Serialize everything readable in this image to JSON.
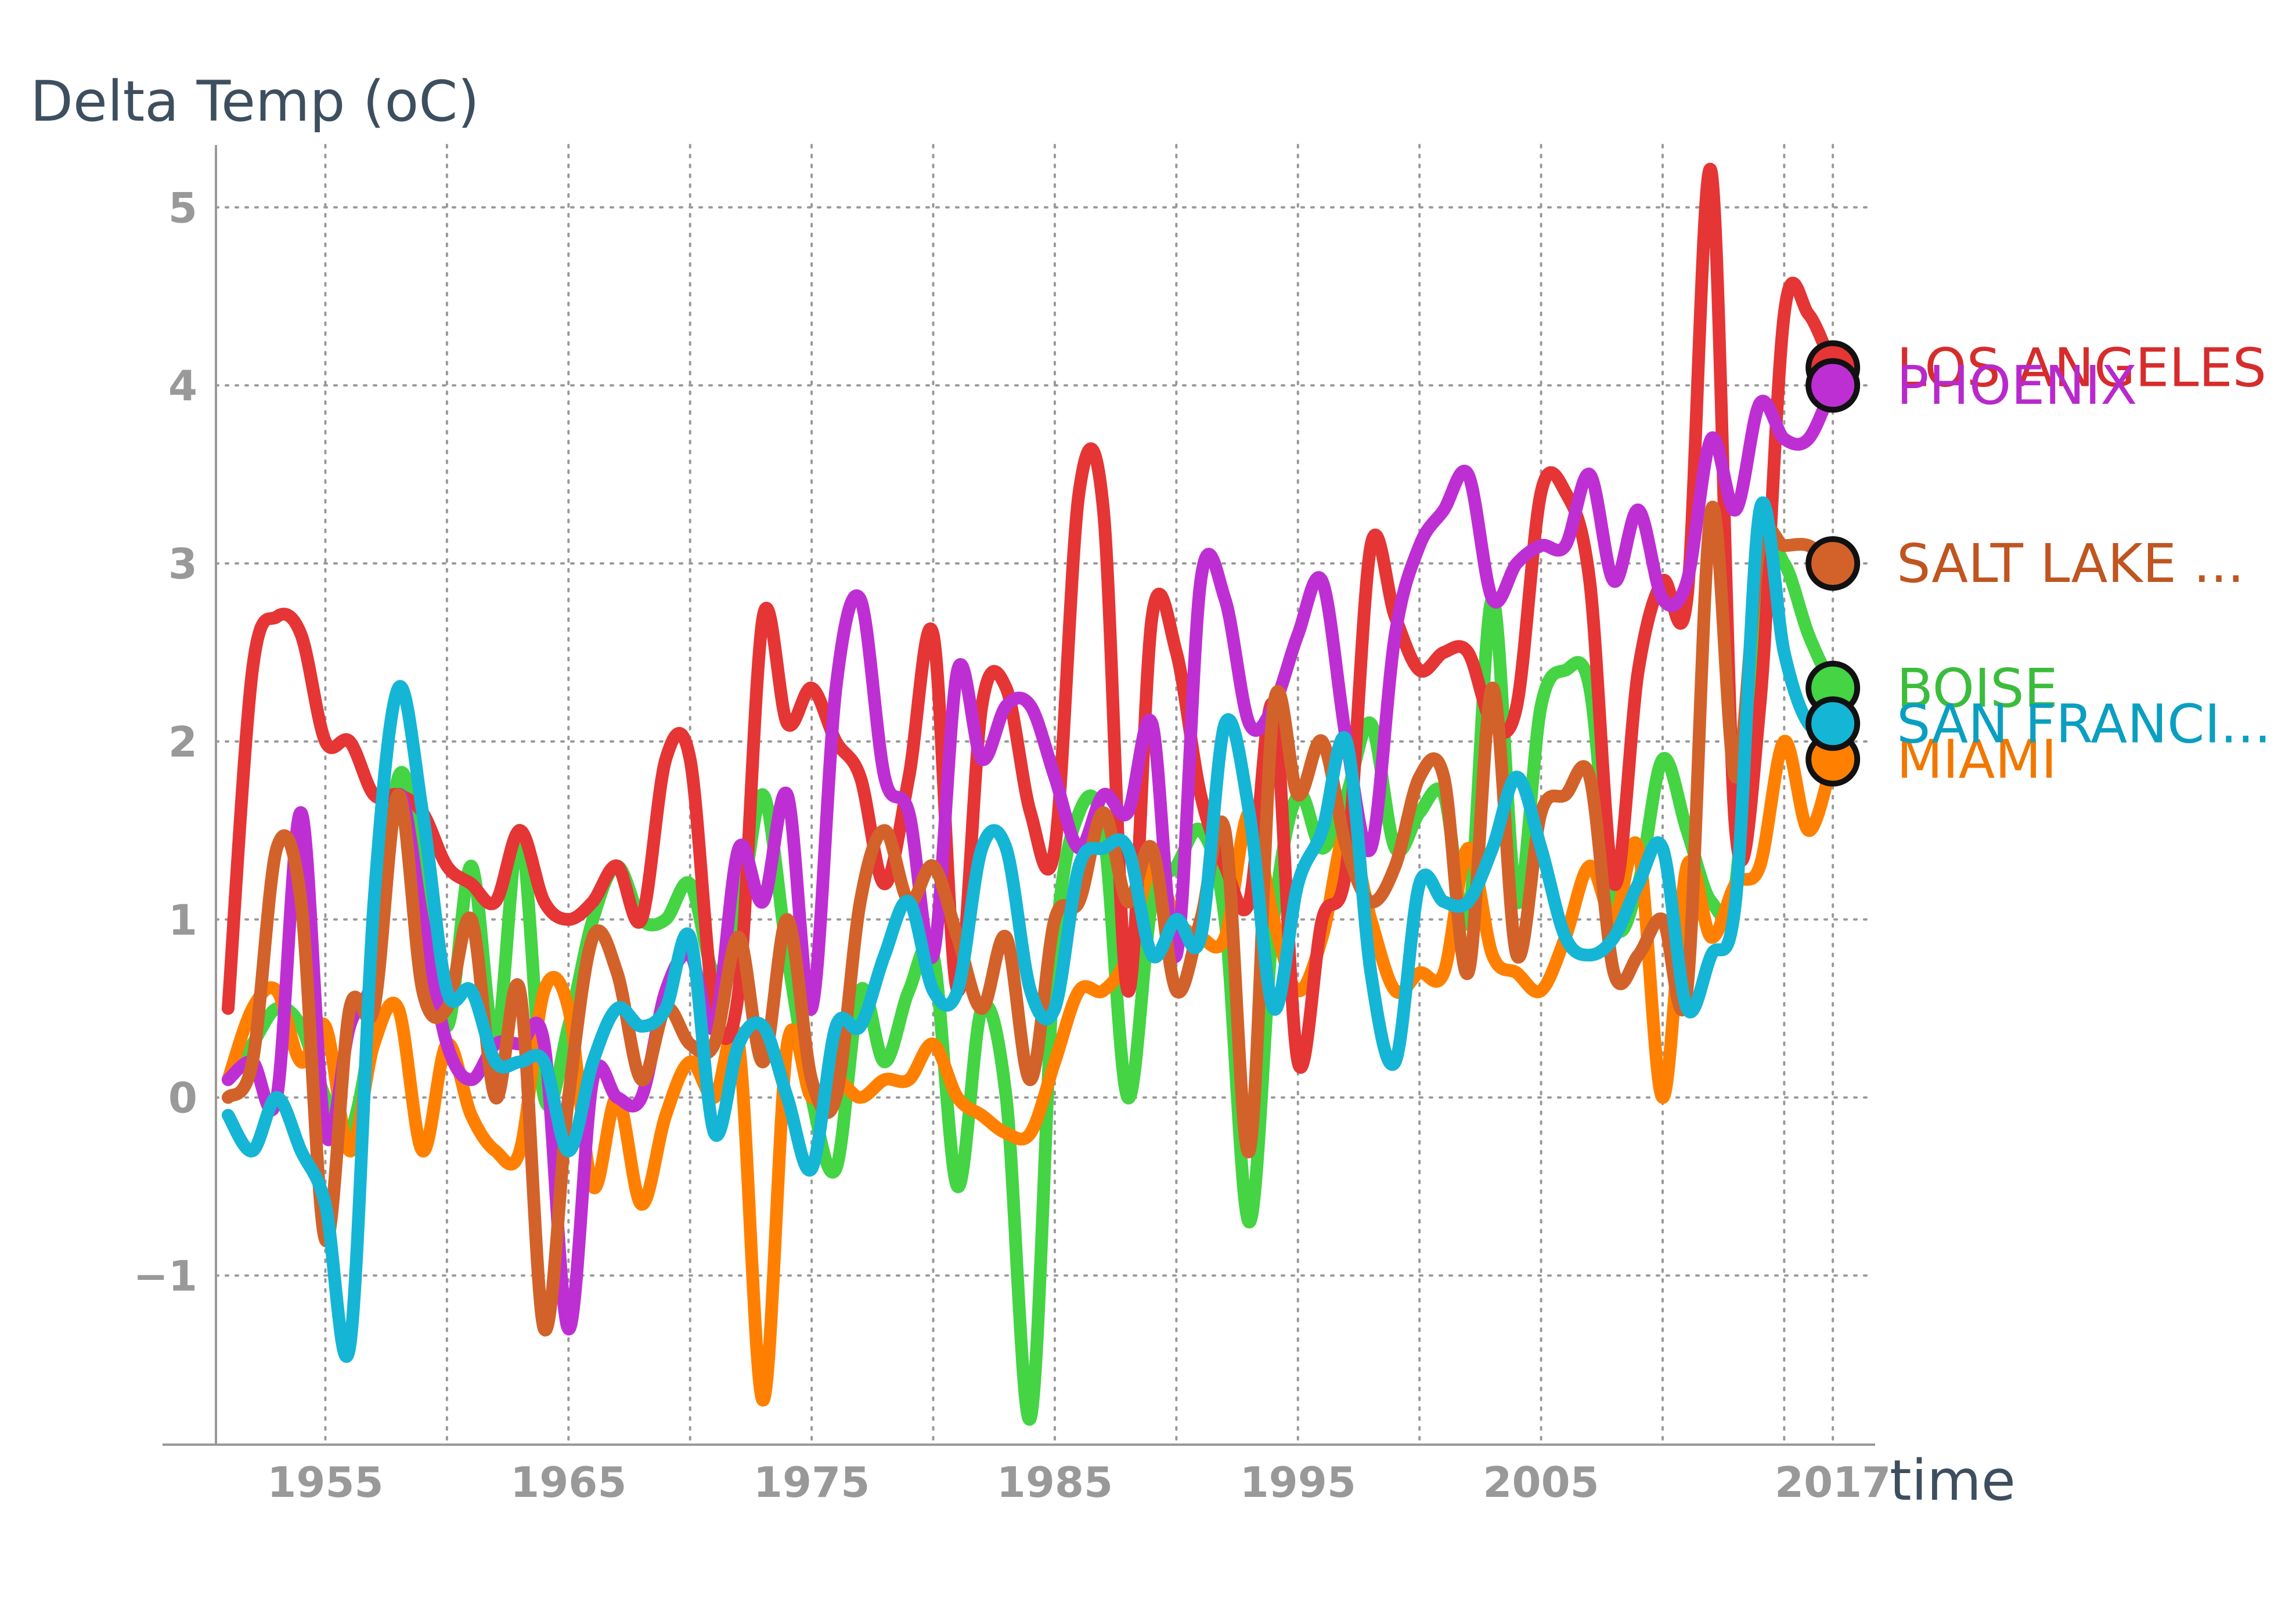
{
  "chart_data": {
    "type": "line",
    "ylabel": "Delta Temp (oC)",
    "xlabel": "time",
    "xlim": [
      1950.5,
      2018.5
    ],
    "ylim": [
      -1.95,
      5.35
    ],
    "grid": true,
    "x_ticks": [
      1955,
      1965,
      1975,
      1985,
      1995,
      2005,
      2017
    ],
    "x_tick_labels": [
      "1955",
      "1965",
      "1975",
      "1985",
      "1995",
      "2005",
      "2017"
    ],
    "y_ticks": [
      -1,
      0,
      1,
      2,
      3,
      4,
      5
    ],
    "y_tick_labels": [
      "−1",
      "0",
      "1",
      "2",
      "3",
      "4",
      "5"
    ],
    "colors": {
      "axis": "#999999",
      "grid": "#999999",
      "marker_outline": "#111111"
    },
    "series": [
      {
        "name": "BOISE",
        "label": "BOISE",
        "color": "#44d444",
        "label_color": "#3cbc3c",
        "x": [
          1951,
          1952,
          1953,
          1954,
          1955,
          1956,
          1957,
          1958,
          1959,
          1960,
          1961,
          1962,
          1963,
          1964,
          1965,
          1966,
          1967,
          1968,
          1969,
          1970,
          1971,
          1972,
          1973,
          1974,
          1975,
          1976,
          1977,
          1978,
          1979,
          1980,
          1981,
          1982,
          1983,
          1984,
          1985,
          1986,
          1987,
          1988,
          1989,
          1990,
          1991,
          1992,
          1993,
          1994,
          1995,
          1996,
          1997,
          1998,
          1999,
          2000,
          2001,
          2002,
          2003,
          2004,
          2005,
          2006,
          2007,
          2008,
          2009,
          2010,
          2011,
          2012,
          2013,
          2014,
          2015,
          2016,
          2017
        ],
        "values": [
          0.1,
          0.3,
          0.5,
          0.4,
          0.0,
          -0.2,
          0.5,
          1.8,
          1.3,
          0.4,
          1.3,
          0.3,
          1.5,
          0.0,
          0.4,
          1.0,
          1.3,
          1.0,
          1.0,
          1.2,
          0.7,
          1.0,
          1.7,
          0.8,
          0.0,
          -0.4,
          0.6,
          0.2,
          0.6,
          0.8,
          -0.5,
          0.5,
          0.0,
          -1.8,
          0.8,
          1.6,
          1.5,
          0.0,
          1.1,
          1.3,
          1.5,
          1.0,
          -0.7,
          1.0,
          1.7,
          1.4,
          1.7,
          2.1,
          1.4,
          1.6,
          1.7,
          1.0,
          2.8,
          1.1,
          2.2,
          2.4,
          2.3,
          1.0,
          1.2,
          1.9,
          1.5,
          1.1,
          1.2,
          3.0,
          3.0,
          2.6,
          2.3
        ]
      },
      {
        "name": "MIAMI",
        "label": "MIAMI",
        "color": "#ff8000",
        "label_color": "#f07800",
        "x": [
          1951,
          1952,
          1953,
          1954,
          1955,
          1956,
          1957,
          1958,
          1959,
          1960,
          1961,
          1962,
          1963,
          1964,
          1965,
          1966,
          1967,
          1968,
          1969,
          1970,
          1971,
          1972,
          1973,
          1974,
          1975,
          1976,
          1977,
          1978,
          1979,
          1980,
          1981,
          1982,
          1983,
          1984,
          1985,
          1986,
          1987,
          1988,
          1989,
          1990,
          1991,
          1992,
          1993,
          1994,
          1995,
          1996,
          1997,
          1998,
          1999,
          2000,
          2001,
          2002,
          2003,
          2004,
          2005,
          2006,
          2007,
          2008,
          2009,
          2010,
          2011,
          2012,
          2013,
          2014,
          2015,
          2016,
          2017
        ],
        "values": [
          0.1,
          0.5,
          0.6,
          0.2,
          0.4,
          -0.3,
          0.3,
          0.5,
          -0.3,
          0.3,
          -0.1,
          -0.3,
          -0.3,
          0.6,
          0.5,
          -0.5,
          0.0,
          -0.6,
          -0.1,
          0.2,
          0.0,
          0.3,
          -1.7,
          0.3,
          0.0,
          0.1,
          0.0,
          0.1,
          0.1,
          0.3,
          0.0,
          -0.1,
          -0.2,
          -0.2,
          0.2,
          0.6,
          0.6,
          0.8,
          1.3,
          1.0,
          0.9,
          0.9,
          1.6,
          1.0,
          0.6,
          0.9,
          1.5,
          1.0,
          0.6,
          0.7,
          0.7,
          1.4,
          0.8,
          0.7,
          0.6,
          0.9,
          1.3,
          1.0,
          1.4,
          0.0,
          1.3,
          0.9,
          1.2,
          1.3,
          2.0,
          1.5,
          1.9
        ]
      },
      {
        "name": "LOS ANGELES",
        "label": "LOS ANGELES",
        "color": "#e53535",
        "label_color": "#d62c2c",
        "x": [
          1951,
          1952,
          1953,
          1954,
          1955,
          1956,
          1957,
          1958,
          1959,
          1960,
          1961,
          1962,
          1963,
          1964,
          1965,
          1966,
          1967,
          1968,
          1969,
          1970,
          1971,
          1972,
          1973,
          1974,
          1975,
          1976,
          1977,
          1978,
          1979,
          1980,
          1981,
          1982,
          1983,
          1984,
          1985,
          1986,
          1987,
          1988,
          1989,
          1990,
          1991,
          1992,
          1993,
          1994,
          1995,
          1996,
          1997,
          1998,
          1999,
          2000,
          2001,
          2002,
          2003,
          2004,
          2005,
          2006,
          2007,
          2008,
          2009,
          2010,
          2011,
          2012,
          2013,
          2014,
          2015,
          2016,
          2017
        ],
        "values": [
          0.5,
          2.4,
          2.7,
          2.6,
          2.0,
          2.0,
          1.7,
          1.7,
          1.6,
          1.3,
          1.2,
          1.1,
          1.5,
          1.1,
          1.0,
          1.1,
          1.3,
          1.0,
          1.9,
          1.9,
          0.5,
          0.6,
          2.7,
          2.1,
          2.3,
          2.0,
          1.8,
          1.2,
          1.8,
          2.6,
          0.6,
          2.2,
          2.3,
          1.6,
          1.4,
          3.4,
          3.3,
          0.6,
          2.7,
          2.5,
          1.7,
          1.3,
          1.1,
          2.2,
          0.2,
          1.0,
          1.3,
          3.1,
          2.7,
          2.4,
          2.5,
          2.5,
          2.1,
          2.2,
          3.4,
          3.4,
          2.9,
          1.2,
          2.4,
          2.9,
          2.8,
          5.2,
          1.5,
          2.2,
          4.4,
          4.4,
          4.1
        ]
      },
      {
        "name": "PHOENIX",
        "label": "PHOENIX",
        "color": "#be2fd3",
        "label_color": "#b829cc",
        "x": [
          1951,
          1952,
          1953,
          1954,
          1955,
          1956,
          1957,
          1958,
          1959,
          1960,
          1961,
          1962,
          1963,
          1964,
          1965,
          1966,
          1967,
          1968,
          1969,
          1970,
          1971,
          1972,
          1973,
          1974,
          1975,
          1976,
          1977,
          1978,
          1979,
          1980,
          1981,
          1982,
          1983,
          1984,
          1985,
          1986,
          1987,
          1988,
          1989,
          1990,
          1991,
          1992,
          1993,
          1994,
          1995,
          1996,
          1997,
          1998,
          1999,
          2000,
          2001,
          2002,
          2003,
          2004,
          2005,
          2006,
          2007,
          2008,
          2009,
          2010,
          2011,
          2012,
          2013,
          2014,
          2015,
          2016,
          2017
        ],
        "values": [
          0.1,
          0.2,
          0.0,
          1.6,
          -0.2,
          0.4,
          0.7,
          1.7,
          1.0,
          0.3,
          0.1,
          0.3,
          0.3,
          0.3,
          -1.3,
          0.1,
          0.0,
          0.0,
          0.6,
          0.8,
          0.4,
          1.4,
          1.1,
          1.7,
          0.5,
          2.3,
          2.8,
          1.8,
          1.6,
          0.8,
          2.4,
          1.9,
          2.2,
          2.2,
          1.8,
          1.4,
          1.7,
          1.6,
          2.1,
          0.8,
          2.9,
          2.8,
          2.1,
          2.2,
          2.6,
          2.9,
          2.0,
          1.4,
          2.6,
          3.1,
          3.3,
          3.5,
          2.8,
          3.0,
          3.1,
          3.1,
          3.5,
          2.9,
          3.3,
          2.8,
          2.9,
          3.7,
          3.3,
          3.9,
          3.7,
          3.7,
          4.0
        ]
      },
      {
        "name": "SALT LAKE CITY",
        "label": "SALT LAKE ...",
        "color": "#d2622a",
        "label_color": "#bf5520",
        "x": [
          1951,
          1952,
          1953,
          1954,
          1955,
          1956,
          1957,
          1958,
          1959,
          1960,
          1961,
          1962,
          1963,
          1964,
          1965,
          1966,
          1967,
          1968,
          1969,
          1970,
          1971,
          1972,
          1973,
          1974,
          1975,
          1976,
          1977,
          1978,
          1979,
          1980,
          1981,
          1982,
          1983,
          1984,
          1985,
          1986,
          1987,
          1988,
          1989,
          1990,
          1991,
          1992,
          1993,
          1994,
          1995,
          1996,
          1997,
          1998,
          1999,
          2000,
          2001,
          2002,
          2003,
          2004,
          2005,
          2006,
          2007,
          2008,
          2009,
          2010,
          2011,
          2012,
          2013,
          2014,
          2015,
          2016,
          2017
        ],
        "values": [
          0.0,
          0.2,
          1.4,
          1.1,
          -0.8,
          0.5,
          0.5,
          1.7,
          0.6,
          0.5,
          1.0,
          0.0,
          0.6,
          -1.3,
          0.0,
          0.9,
          0.7,
          0.1,
          0.5,
          0.3,
          0.3,
          0.9,
          0.2,
          1.0,
          0.1,
          0.0,
          1.1,
          1.5,
          1.1,
          1.3,
          0.9,
          0.5,
          0.9,
          0.1,
          1.0,
          1.1,
          1.6,
          1.1,
          1.4,
          0.6,
          1.0,
          1.5,
          -0.3,
          2.2,
          1.7,
          2.0,
          1.4,
          1.1,
          1.3,
          1.8,
          1.8,
          0.7,
          2.3,
          0.8,
          1.6,
          1.7,
          1.8,
          0.7,
          0.8,
          1.0,
          0.6,
          3.3,
          1.8,
          3.1,
          3.1,
          3.1,
          3.0
        ]
      },
      {
        "name": "SAN FRANCISCO",
        "label": "SAN FRANCI...",
        "color": "#15b5d5",
        "label_color": "#0a9fc0",
        "x": [
          1951,
          1952,
          1953,
          1954,
          1955,
          1956,
          1957,
          1958,
          1959,
          1960,
          1961,
          1962,
          1963,
          1964,
          1965,
          1966,
          1967,
          1968,
          1969,
          1970,
          1971,
          1972,
          1973,
          1974,
          1975,
          1976,
          1977,
          1978,
          1979,
          1980,
          1981,
          1982,
          1983,
          1984,
          1985,
          1986,
          1987,
          1988,
          1989,
          1990,
          1991,
          1992,
          1993,
          1994,
          1995,
          1996,
          1997,
          1998,
          1999,
          2000,
          2001,
          2002,
          2003,
          2004,
          2005,
          2006,
          2007,
          2008,
          2009,
          2010,
          2011,
          2012,
          2013,
          2014,
          2015,
          2016,
          2017
        ],
        "values": [
          -0.1,
          -0.3,
          0.0,
          -0.3,
          -0.6,
          -1.4,
          1.1,
          2.3,
          1.6,
          0.6,
          0.6,
          0.2,
          0.2,
          0.2,
          -0.3,
          0.2,
          0.5,
          0.4,
          0.5,
          0.9,
          -0.2,
          0.3,
          0.4,
          0.0,
          -0.4,
          0.4,
          0.4,
          0.8,
          1.1,
          0.6,
          0.6,
          1.4,
          1.4,
          0.6,
          0.5,
          1.3,
          1.4,
          1.4,
          0.8,
          1.0,
          0.9,
          2.1,
          1.6,
          0.5,
          1.2,
          1.5,
          2.0,
          0.7,
          0.2,
          1.2,
          1.1,
          1.1,
          1.4,
          1.8,
          1.4,
          0.9,
          0.8,
          0.9,
          1.2,
          1.4,
          0.5,
          0.8,
          1.1,
          3.3,
          2.5,
          2.1,
          2.1
        ]
      }
    ]
  }
}
